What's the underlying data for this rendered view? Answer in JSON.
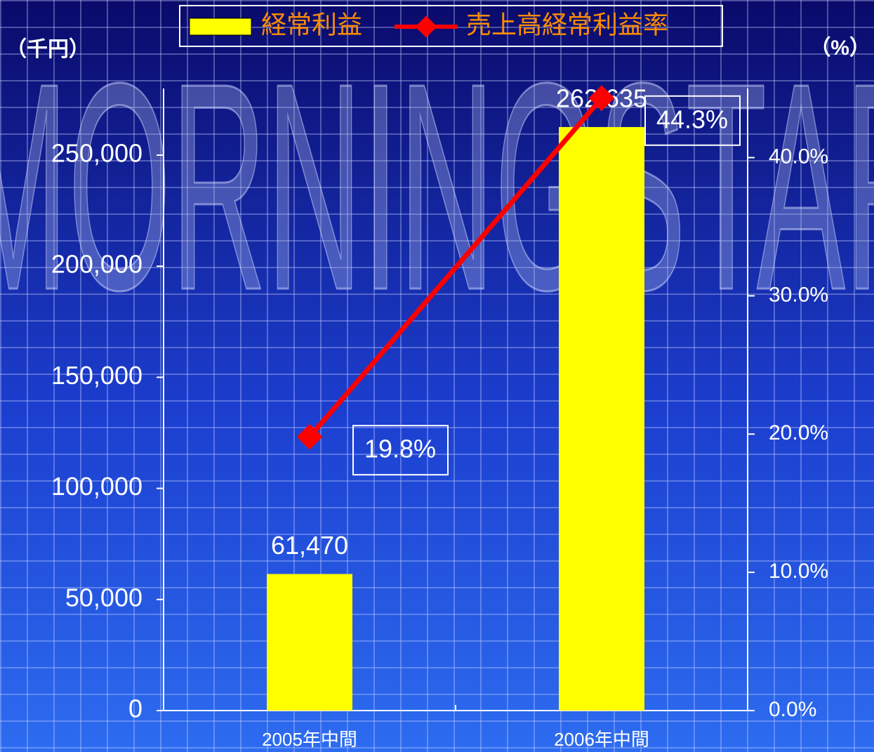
{
  "chart_data": {
    "type": "bar_line",
    "watermark": "MORNINGSTAR",
    "y_label": "（千円）",
    "y2_label": "（%）",
    "categories": [
      "2005年中間",
      "2006年中間"
    ],
    "series": [
      {
        "name": "経常利益",
        "type": "bar",
        "color": "#ffff00",
        "values": [
          61470,
          262635
        ],
        "value_labels": [
          "61,470",
          "262,635"
        ]
      },
      {
        "name": "売上高経常利益率",
        "type": "line",
        "axis": "y2",
        "color": "#ff0000",
        "values": [
          19.8,
          44.3
        ],
        "value_labels": [
          "19.8%",
          "44.3%"
        ]
      }
    ],
    "ylim": [
      0,
      280000
    ],
    "yticks": [
      0,
      {
        "value": 50000,
        "label": "50,000"
      },
      {
        "value": 100000,
        "label": "100,000"
      },
      {
        "value": 150000,
        "label": "150,000"
      },
      {
        "value": 200000,
        "label": "200,000"
      },
      {
        "value": 250000,
        "label": "250,000"
      }
    ],
    "y2lim": [
      0,
      45
    ],
    "y2ticks": [
      {
        "value": 0,
        "label": "0.0%"
      },
      {
        "value": 10,
        "label": "10.0%"
      },
      {
        "value": 20,
        "label": "20.0%"
      },
      {
        "value": 30,
        "label": "30.0%"
      },
      {
        "value": 40,
        "label": "40.0%"
      }
    ]
  }
}
